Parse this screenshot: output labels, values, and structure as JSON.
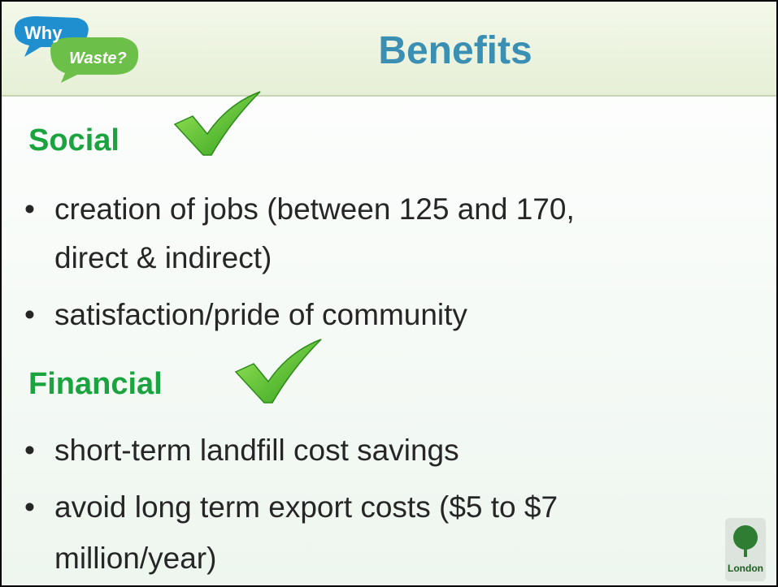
{
  "header": {
    "logo": [
      "Why",
      "Waste?"
    ],
    "title": "Benefits"
  },
  "sections": [
    {
      "heading": "Social",
      "items": [
        [
          "creation of jobs (between 125 and 170,",
          "direct & indirect)"
        ],
        [
          "satisfaction/pride of community"
        ]
      ]
    },
    {
      "heading": "Financial",
      "items": [
        [
          "short-term landfill cost savings"
        ],
        [
          "avoid long term export costs ($5 to $7",
          "million/year)"
        ]
      ]
    }
  ],
  "footer": {
    "logo": "London"
  }
}
